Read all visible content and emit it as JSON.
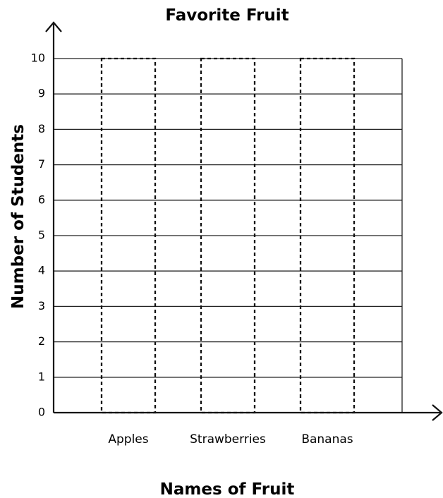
{
  "chart_data": {
    "type": "bar",
    "title": "Favorite Fruit",
    "xlabel": "Names of Fruit",
    "ylabel": "Number of Students",
    "categories": [
      "Apples",
      "Strawberries",
      "Bananas"
    ],
    "values": [
      10,
      10,
      10
    ],
    "ylim": [
      0,
      10
    ],
    "yticks": [
      "0",
      "1",
      "2",
      "3",
      "4",
      "5",
      "6",
      "7",
      "8",
      "9",
      "10"
    ],
    "grid": true,
    "legend": "none",
    "bar_style": "dashed-outline"
  }
}
